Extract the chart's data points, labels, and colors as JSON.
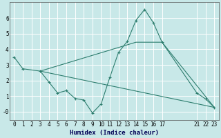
{
  "background_color": "#c8e8e8",
  "grid_color": "#ffffff",
  "line_color": "#2d7d6e",
  "marker_color": "#2d7d6e",
  "xlabel": "Humidex (Indice chaleur)",
  "xlim": [
    -0.5,
    23.5
  ],
  "ylim": [
    -0.55,
    7.0
  ],
  "xticks": [
    0,
    1,
    2,
    3,
    4,
    5,
    6,
    7,
    8,
    9,
    10,
    11,
    12,
    13,
    14,
    15,
    16,
    17,
    21,
    22,
    23
  ],
  "yticks": [
    0,
    1,
    2,
    3,
    4,
    5,
    6
  ],
  "ytick_labels": [
    "-0",
    "1",
    "2",
    "3",
    "4",
    "5",
    "6"
  ],
  "series1_x": [
    0,
    1,
    3,
    4,
    5,
    6,
    7,
    8,
    9,
    10,
    11,
    12,
    13,
    14,
    15,
    16,
    17,
    21,
    22,
    23
  ],
  "series1_y": [
    3.5,
    2.75,
    2.6,
    1.9,
    1.2,
    1.35,
    0.85,
    0.75,
    -0.08,
    0.5,
    2.2,
    3.8,
    4.5,
    5.85,
    6.55,
    5.7,
    4.45,
    1.2,
    0.82,
    0.28
  ],
  "series2_x": [
    3,
    23
  ],
  "series2_y": [
    2.6,
    0.28
  ],
  "series3_x": [
    3,
    14,
    17,
    23
  ],
  "series3_y": [
    2.6,
    4.45,
    4.45,
    0.28
  ],
  "font_size": 5.5,
  "xlabel_fontsize": 6.5
}
